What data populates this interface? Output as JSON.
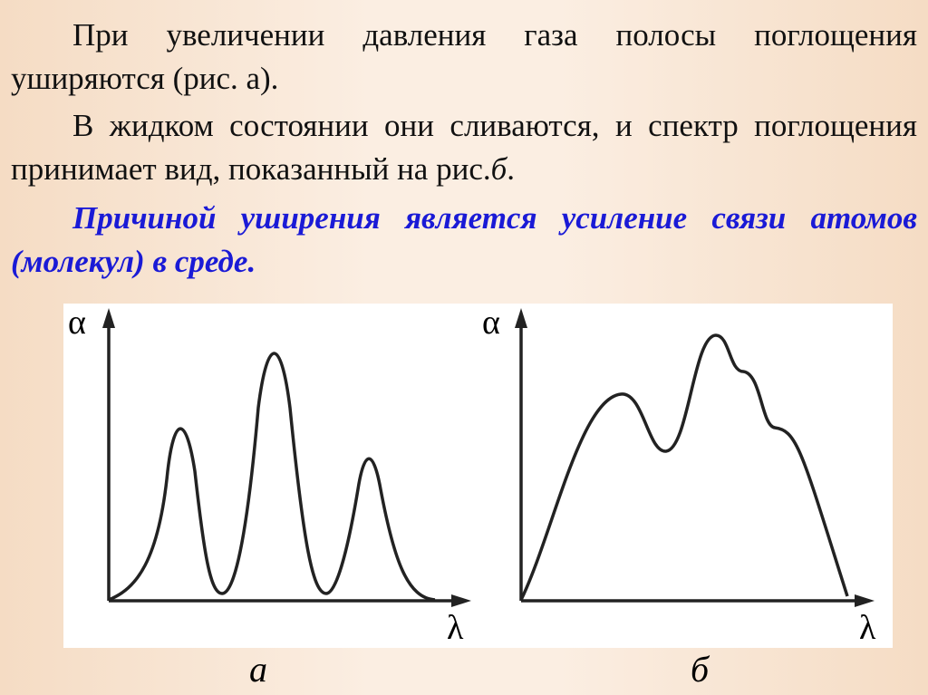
{
  "paragraphs": [
    {
      "text": "При увеличении давления газа полосы поглощения уширяются (рис. а)."
    },
    {
      "text": "В жидком состоянии они сливаются, и спектр поглощения принимает вид, показанный на рис.",
      "ref": "б",
      "end": "."
    },
    {
      "text": "Причиной уширения является усиление связи атомов (молекул) в среде."
    }
  ],
  "figures": [
    {
      "y_label": "α",
      "x_label": "λ",
      "caption": "а"
    },
    {
      "y_label": "α",
      "x_label": "λ",
      "caption": "б"
    }
  ]
}
